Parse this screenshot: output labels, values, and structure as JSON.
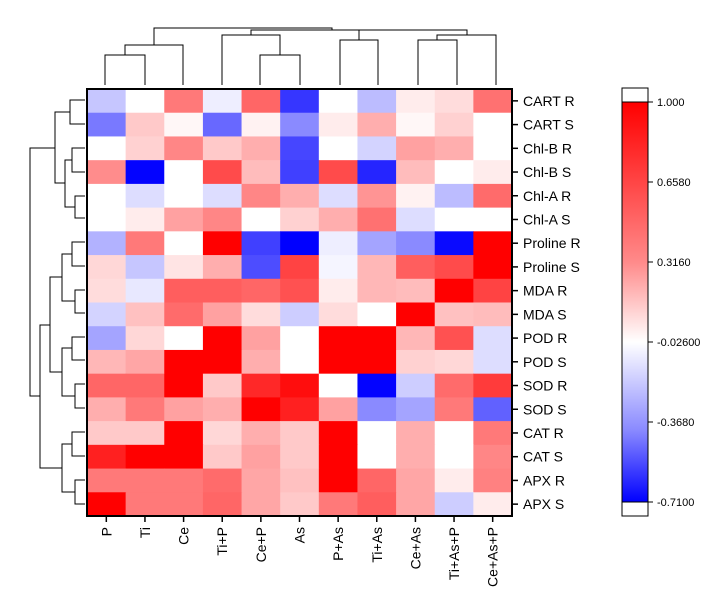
{
  "chart_data": {
    "type": "heatmap",
    "columns": [
      "P",
      "Ti",
      "Ce",
      "Ti+P",
      "Ce+P",
      "As",
      "P+As",
      "Ti+As",
      "Ce+As",
      "Ti+As+P",
      "Ce+As+P"
    ],
    "rows": [
      "CART R",
      "CART S",
      "Chl-B R",
      "Chl-B S",
      "Chl-A R",
      "Chl-A S",
      "Proline R",
      "Proline S",
      "MDA R",
      "MDA S",
      "POD R",
      "POD S",
      "SOD R",
      "SOD S",
      "CAT R",
      "CAT S",
      "APX R",
      "APX S"
    ],
    "values": [
      [
        -0.12,
        0.05,
        0.55,
        0.0,
        0.62,
        -0.55,
        0.05,
        -0.15,
        0.12,
        0.18,
        0.58
      ],
      [
        -0.35,
        0.25,
        0.08,
        -0.4,
        0.1,
        -0.3,
        0.12,
        0.35,
        0.08,
        0.22,
        0.05
      ],
      [
        0.05,
        0.22,
        0.5,
        0.25,
        0.35,
        -0.5,
        0.05,
        -0.08,
        0.4,
        0.35,
        0.05
      ],
      [
        0.48,
        -0.7,
        0.05,
        0.72,
        0.3,
        -0.52,
        0.72,
        -0.6,
        0.3,
        0.05,
        0.12
      ],
      [
        0.05,
        -0.05,
        0.05,
        -0.05,
        0.5,
        0.35,
        -0.05,
        0.45,
        0.1,
        -0.15,
        0.6
      ],
      [
        0.05,
        0.12,
        0.4,
        0.5,
        0.05,
        0.22,
        0.35,
        0.58,
        -0.05,
        0.05,
        0.05
      ],
      [
        -0.18,
        0.55,
        0.05,
        1.0,
        -0.52,
        -0.71,
        0.0,
        -0.22,
        -0.3,
        -0.68,
        1.0
      ],
      [
        0.2,
        -0.12,
        0.15,
        0.35,
        -0.48,
        0.75,
        0.02,
        0.32,
        0.65,
        0.72,
        1.0
      ],
      [
        0.18,
        -0.02,
        0.65,
        0.65,
        0.62,
        0.7,
        0.12,
        0.32,
        0.3,
        1.0,
        0.75
      ],
      [
        -0.08,
        0.28,
        0.6,
        0.4,
        0.18,
        -0.1,
        0.18,
        0.05,
        1.0,
        0.28,
        0.3
      ],
      [
        -0.22,
        0.2,
        0.05,
        1.0,
        0.4,
        0.05,
        1.0,
        1.0,
        0.32,
        0.7,
        -0.05
      ],
      [
        0.32,
        0.38,
        1.0,
        1.0,
        0.35,
        0.05,
        1.0,
        1.0,
        0.22,
        0.2,
        -0.05
      ],
      [
        0.62,
        0.62,
        1.0,
        0.25,
        0.85,
        0.95,
        0.05,
        -0.7,
        -0.1,
        0.6,
        0.78
      ],
      [
        0.35,
        0.55,
        0.4,
        0.35,
        1.0,
        0.88,
        0.4,
        -0.3,
        -0.22,
        0.55,
        -0.42
      ],
      [
        0.25,
        0.25,
        1.0,
        0.2,
        0.35,
        0.25,
        1.0,
        0.05,
        0.35,
        0.05,
        0.55
      ],
      [
        0.88,
        1.0,
        1.0,
        0.25,
        0.4,
        0.25,
        1.0,
        0.05,
        0.35,
        0.05,
        0.5
      ],
      [
        0.55,
        0.55,
        0.55,
        0.6,
        0.38,
        0.28,
        1.0,
        0.62,
        0.38,
        0.12,
        0.52
      ],
      [
        1.0,
        0.55,
        0.55,
        0.62,
        0.38,
        0.25,
        0.55,
        0.65,
        0.38,
        -0.1,
        0.12
      ]
    ],
    "colorbar": {
      "min": -0.71,
      "max": 1.0,
      "ticks": [
        "1.000",
        "0.6580",
        "0.3160",
        "-0.02600",
        "-0.3680",
        "-0.7100"
      ],
      "tick_values": [
        1.0,
        0.658,
        0.316,
        -0.026,
        -0.368,
        -0.71
      ],
      "colors": {
        "low": "#0000ff",
        "mid": "#ffffff",
        "high": "#ff0000"
      }
    },
    "dendrogram_top": true,
    "dendrogram_left": true
  }
}
